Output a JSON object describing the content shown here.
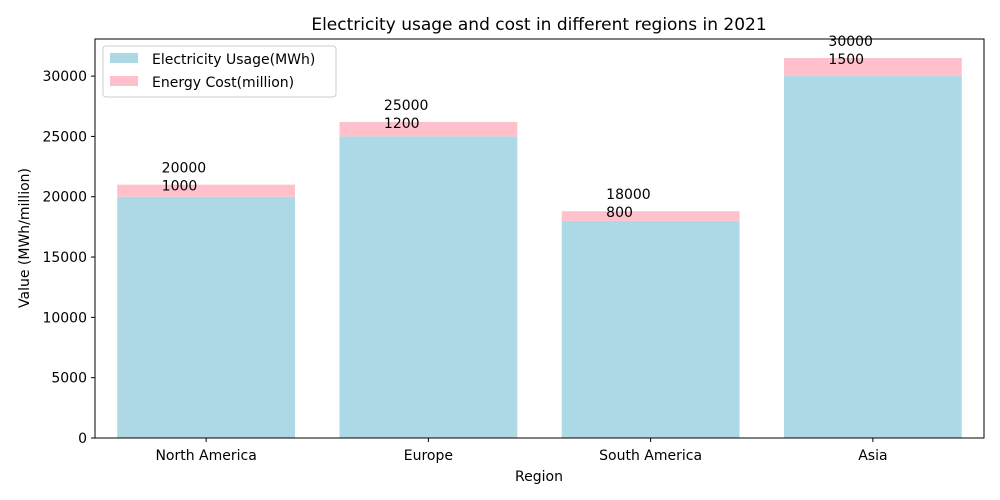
{
  "chart_data": {
    "type": "bar",
    "stacked": true,
    "title": "Electricity usage and cost in different regions in 2021",
    "xlabel": "Region",
    "ylabel": "Value (MWh/million)",
    "categories": [
      "North America",
      "Europe",
      "South America",
      "Asia"
    ],
    "series": [
      {
        "name": "Electricity Usage(MWh)",
        "color": "#add8e6",
        "values": [
          20000,
          25000,
          18000,
          30000
        ]
      },
      {
        "name": "Energy Cost(million)",
        "color": "#ffc0cb",
        "values": [
          1000,
          1200,
          800,
          1500
        ]
      }
    ],
    "ylim": [
      0,
      33075
    ],
    "yticks": [
      0,
      5000,
      10000,
      15000,
      20000,
      25000,
      30000
    ],
    "legend": "top-left",
    "grid": false
  }
}
